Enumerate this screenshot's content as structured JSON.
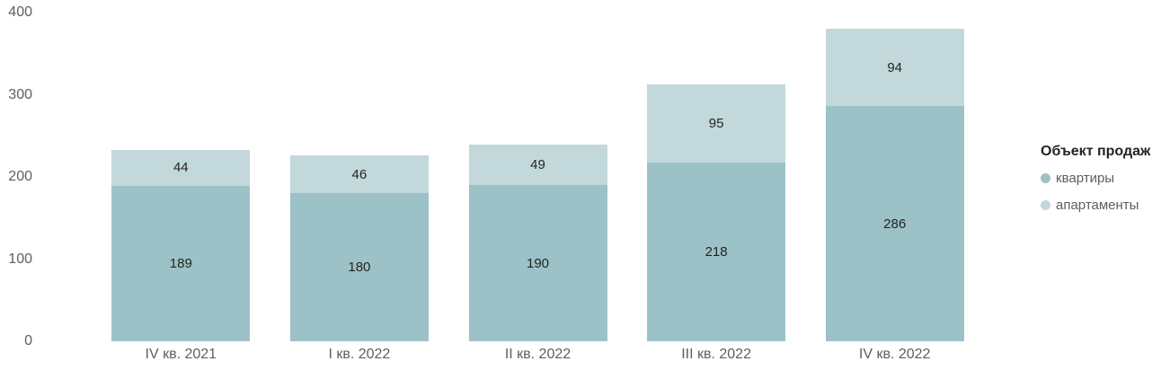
{
  "legend": {
    "title": "Объект продаж",
    "position": "right"
  },
  "colors": {
    "series_kvartiry": "#9cc2c7",
    "series_apartamenty": "#c2d8db",
    "axis_text": "#605e5c",
    "data_label": "#252423",
    "legend_title_text": "#252423",
    "legend_item_text": "#605e5c",
    "background": "#ffffff"
  },
  "chart_data": {
    "type": "bar",
    "stacked": true,
    "title": "",
    "xlabel": "",
    "ylabel": "",
    "categories": [
      "IV кв. 2021",
      "I кв. 2022",
      "II кв. 2022",
      "III кв. 2022",
      "IV кв. 2022"
    ],
    "series": [
      {
        "name": "квартиры",
        "color": "#9cc2c7",
        "values": [
          189,
          180,
          190,
          218,
          286
        ]
      },
      {
        "name": "апартаменты",
        "color": "#c2d8db",
        "values": [
          44,
          46,
          49,
          95,
          94
        ]
      }
    ],
    "totals": [
      233,
      226,
      239,
      313,
      380
    ],
    "yticks": [
      0,
      100,
      200,
      300,
      400
    ],
    "ylim": [
      0,
      400
    ],
    "grid": false,
    "legend_title": "Объект продаж",
    "legend_position": "right",
    "data_labels_visible": true
  }
}
